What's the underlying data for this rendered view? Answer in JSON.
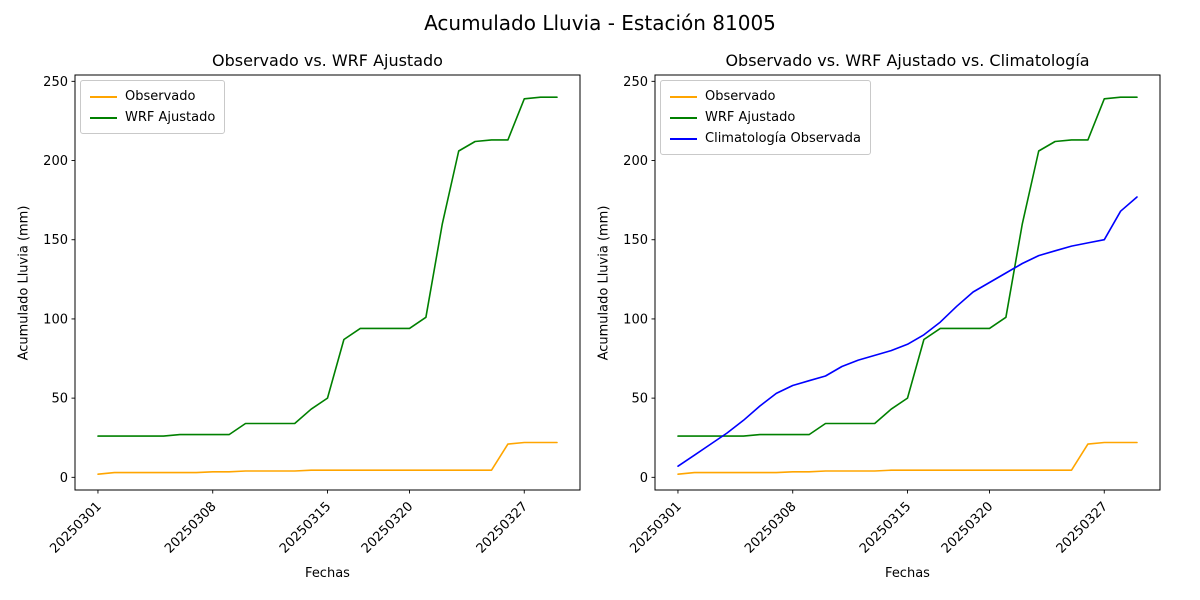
{
  "figure": {
    "title": "Acumulado Lluvia - Estación 81005"
  },
  "chart_data": [
    {
      "type": "line",
      "title": "Observado vs. WRF Ajustado",
      "xlabel": "Fechas",
      "ylabel": "Acumulado Lluvia (mm)",
      "ylim": [
        0,
        250
      ],
      "yticks": [
        0,
        50,
        100,
        150,
        200,
        250
      ],
      "grid": false,
      "legend_position": "upper left",
      "x": [
        "20250301",
        "20250302",
        "20250303",
        "20250304",
        "20250305",
        "20250306",
        "20250307",
        "20250308",
        "20250309",
        "20250310",
        "20250311",
        "20250312",
        "20250313",
        "20250314",
        "20250315",
        "20250316",
        "20250317",
        "20250318",
        "20250319",
        "20250320",
        "20250321",
        "20250322",
        "20250323",
        "20250324",
        "20250325",
        "20250326",
        "20250327",
        "20250328",
        "20250329"
      ],
      "xticks": [
        {
          "day": 1,
          "label": "20250301"
        },
        {
          "day": 8,
          "label": "20250308"
        },
        {
          "day": 15,
          "label": "20250315"
        },
        {
          "day": 20,
          "label": "20250320"
        },
        {
          "day": 27,
          "label": "20250327"
        }
      ],
      "series": [
        {
          "name": "Observado",
          "color": "#ffa500",
          "values": [
            2,
            3,
            3,
            3,
            3,
            3,
            3,
            3.5,
            3.5,
            4,
            4,
            4,
            4,
            4.5,
            4.5,
            4.5,
            4.5,
            4.5,
            4.5,
            4.5,
            4.5,
            4.5,
            4.5,
            4.5,
            4.5,
            21,
            22,
            22,
            22
          ]
        },
        {
          "name": "WRF Ajustado",
          "color": "#008000",
          "values": [
            26,
            26,
            26,
            26,
            26,
            27,
            27,
            27,
            27,
            34,
            34,
            34,
            34,
            43,
            50,
            87,
            94,
            94,
            94,
            94,
            101,
            160,
            206,
            212,
            213,
            213,
            239,
            240,
            240
          ]
        }
      ]
    },
    {
      "type": "line",
      "title": "Observado vs. WRF Ajustado vs. Climatología",
      "xlabel": "Fechas",
      "ylabel": "Acumulado Lluvia (mm)",
      "ylim": [
        0,
        250
      ],
      "yticks": [
        0,
        50,
        100,
        150,
        200,
        250
      ],
      "grid": false,
      "legend_position": "upper left",
      "x": [
        "20250301",
        "20250302",
        "20250303",
        "20250304",
        "20250305",
        "20250306",
        "20250307",
        "20250308",
        "20250309",
        "20250310",
        "20250311",
        "20250312",
        "20250313",
        "20250314",
        "20250315",
        "20250316",
        "20250317",
        "20250318",
        "20250319",
        "20250320",
        "20250321",
        "20250322",
        "20250323",
        "20250324",
        "20250325",
        "20250326",
        "20250327",
        "20250328",
        "20250329"
      ],
      "xticks": [
        {
          "day": 1,
          "label": "20250301"
        },
        {
          "day": 8,
          "label": "20250308"
        },
        {
          "day": 15,
          "label": "20250315"
        },
        {
          "day": 20,
          "label": "20250320"
        },
        {
          "day": 27,
          "label": "20250327"
        }
      ],
      "series": [
        {
          "name": "Observado",
          "color": "#ffa500",
          "values": [
            2,
            3,
            3,
            3,
            3,
            3,
            3,
            3.5,
            3.5,
            4,
            4,
            4,
            4,
            4.5,
            4.5,
            4.5,
            4.5,
            4.5,
            4.5,
            4.5,
            4.5,
            4.5,
            4.5,
            4.5,
            4.5,
            21,
            22,
            22,
            22
          ]
        },
        {
          "name": "WRF Ajustado",
          "color": "#008000",
          "values": [
            26,
            26,
            26,
            26,
            26,
            27,
            27,
            27,
            27,
            34,
            34,
            34,
            34,
            43,
            50,
            87,
            94,
            94,
            94,
            94,
            101,
            160,
            206,
            212,
            213,
            213,
            239,
            240,
            240
          ]
        },
        {
          "name": "Climatología Observada",
          "color": "#0000ff",
          "values": [
            7,
            14,
            21,
            28,
            36,
            45,
            53,
            58,
            61,
            64,
            70,
            74,
            77,
            80,
            84,
            90,
            98,
            108,
            117,
            123,
            129,
            135,
            140,
            143,
            146,
            148,
            150,
            168,
            177
          ]
        }
      ]
    }
  ]
}
